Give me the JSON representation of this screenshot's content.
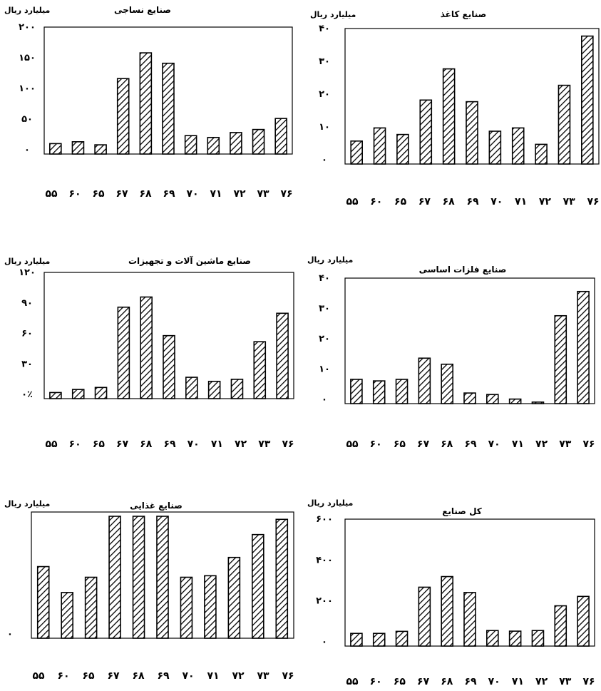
{
  "chart_data": [
    {
      "type": "bar",
      "title": "صنایع نساجی",
      "ylabel": "میلیارد ریال",
      "categories": [
        "۵۵",
        "۶۰",
        "۶۵",
        "۶۷",
        "۶۸",
        "۶۹",
        "۷۰",
        "۷۱",
        "۷۲",
        "۷۳",
        "۷۶"
      ],
      "values": [
        17,
        20,
        15,
        123,
        165,
        148,
        30,
        27,
        35,
        40,
        58
      ],
      "ylim": [
        0,
        200
      ],
      "yticks": [
        0,
        50,
        100,
        150,
        200
      ],
      "yticklabels": [
        "۰",
        "۵۰",
        "۱۰۰",
        "۱۵۰",
        "۲۰۰"
      ],
      "grid": false
    },
    {
      "type": "bar",
      "title": "صنایع کاغذ",
      "ylabel": "میلیارد ریال",
      "categories": [
        "۵۵",
        "۶۰",
        "۶۵",
        "۶۷",
        "۶۸",
        "۶۹",
        "۷۰",
        "۷۱",
        "۷۲",
        "۷۳",
        "۷۶"
      ],
      "values": [
        7,
        11,
        9,
        19.5,
        29,
        19,
        10,
        11,
        6,
        24,
        39
      ],
      "ylim": [
        0,
        40
      ],
      "yticks": [
        0,
        10,
        20,
        30,
        40
      ],
      "yticklabels": [
        "۰",
        "۱۰",
        "۲۰",
        "۳۰",
        "۴۰"
      ],
      "grid": false
    },
    {
      "type": "bar",
      "title": "صنایع ماشین آلات و تجهیزات",
      "ylabel": "میلیارد ریال",
      "categories": [
        "۵۵",
        "۶۰",
        "۶۵",
        "۶۷",
        "۶۸",
        "۶۹",
        "۷۰",
        "۷۱",
        "۷۲",
        "۷۳",
        "۷۶"
      ],
      "values": [
        6,
        9,
        11,
        90,
        100,
        62,
        21,
        17,
        19,
        56,
        84
      ],
      "ylim": [
        0,
        120
      ],
      "yticks": [
        0,
        30,
        60,
        90,
        120
      ],
      "yticklabels": [
        "۰٪",
        "۳۰",
        "۶۰",
        "۹۰",
        "۱۲۰"
      ],
      "grid": false
    },
    {
      "type": "bar",
      "title": "صنایع فلزات اساسی",
      "ylabel": "میلیارد ریال",
      "categories": [
        "۵۵",
        "۶۰",
        "۶۵",
        "۶۷",
        "۶۸",
        "۶۹",
        "۷۰",
        "۷۱",
        "۷۲",
        "۷۳",
        "۷۶"
      ],
      "values": [
        8,
        7.5,
        8,
        15,
        13,
        3.5,
        3,
        1.5,
        0.5,
        29,
        37
      ],
      "ylim": [
        0,
        40
      ],
      "yticks": [
        0,
        10,
        20,
        30,
        40
      ],
      "yticklabels": [
        "۰",
        "۱۰",
        "۲۰",
        "۳۰",
        "۴۰"
      ],
      "grid": false
    },
    {
      "type": "bar",
      "title": "صنایع غذایی",
      "ylabel": "میلیارد ریال",
      "categories": [
        "۵۵",
        "۶۰",
        "۶۵",
        "۶۷",
        "۶۸",
        "۶۹",
        "۷۰",
        "۷۱",
        "۷۲",
        "۷۳",
        "۷۶"
      ],
      "values": [
        47,
        30,
        40,
        80,
        80,
        80,
        40,
        41,
        53,
        68,
        78
      ],
      "ylim": [
        0,
        80
      ],
      "yticks": [
        0,
        20,
        40,
        60,
        80
      ],
      "yticklabels": [
        "۰",
        "",
        "",
        "",
        ""
      ],
      "grid": false
    },
    {
      "type": "bar",
      "title": "کل صنایع",
      "ylabel": "میلیارد ریال",
      "categories": [
        "۵۵",
        "۶۰",
        "۶۵",
        "۶۷",
        "۶۸",
        "۶۹",
        "۷۰",
        "۷۱",
        "۷۲",
        "۷۳",
        "۷۶"
      ],
      "values": [
        62,
        62,
        72,
        288,
        340,
        262,
        76,
        73,
        76,
        197,
        243
      ],
      "ylim": [
        0,
        600
      ],
      "yticks": [
        0,
        200,
        400,
        600
      ],
      "yticklabels": [
        "۰",
        "۲۰۰",
        "۴۰۰",
        "۶۰۰"
      ],
      "grid": false
    }
  ]
}
